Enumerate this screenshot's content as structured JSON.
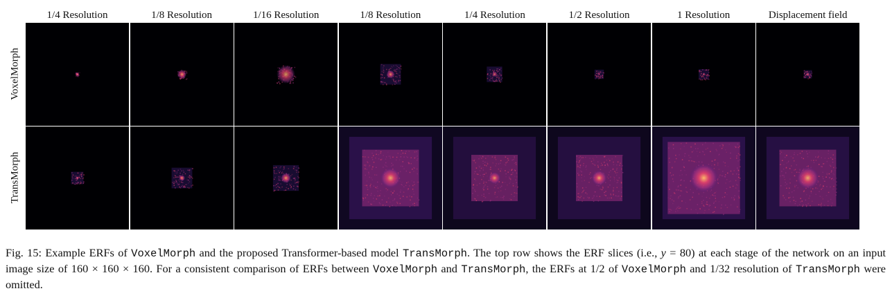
{
  "figure": {
    "columns": [
      "1/4 Resolution",
      "1/8 Resolution",
      "1/16 Resolution",
      "1/8 Resolution",
      "1/4 Resolution",
      "1/2 Resolution",
      "1 Resolution",
      "Displacement field"
    ],
    "rows": [
      "VoxelMorph",
      "TransMorph"
    ],
    "colors": {
      "background": "#000003",
      "hot_core": "#fcb86a",
      "warm": "#e2406c",
      "mid": "#9e2f7f",
      "cool": "#4b1d7a",
      "dim": "#1e0f3d"
    },
    "panels": [
      [
        {
          "core": 0.04,
          "halo": 0.0,
          "field": 0.0,
          "intensity": 1.0
        },
        {
          "core": 0.09,
          "halo": 0.0,
          "field": 0.0,
          "intensity": 0.9
        },
        {
          "core": 0.18,
          "halo": 0.0,
          "field": 0.0,
          "intensity": 0.8
        },
        {
          "core": 0.08,
          "halo": 0.2,
          "field": 0.0,
          "intensity": 0.85
        },
        {
          "core": 0.05,
          "halo": 0.15,
          "field": 0.0,
          "intensity": 0.8
        },
        {
          "core": 0.02,
          "halo": 0.09,
          "field": 0.0,
          "intensity": 0.7
        },
        {
          "core": 0.03,
          "halo": 0.1,
          "field": 0.0,
          "intensity": 0.8
        },
        {
          "core": 0.04,
          "halo": 0.08,
          "field": 0.0,
          "intensity": 0.8
        }
      ],
      [
        {
          "core": 0.03,
          "halo": 0.12,
          "field": 0.0,
          "intensity": 1.0
        },
        {
          "core": 0.06,
          "halo": 0.2,
          "field": 0.0,
          "intensity": 0.9
        },
        {
          "core": 0.1,
          "halo": 0.25,
          "field": 0.0,
          "intensity": 0.9
        },
        {
          "core": 0.2,
          "halo": 0.55,
          "field": 1.0,
          "intensity": 0.9
        },
        {
          "core": 0.12,
          "halo": 0.45,
          "field": 0.8,
          "intensity": 0.85
        },
        {
          "core": 0.15,
          "halo": 0.45,
          "field": 0.85,
          "intensity": 0.9
        },
        {
          "core": 0.28,
          "halo": 0.7,
          "field": 1.0,
          "intensity": 1.0
        },
        {
          "core": 0.22,
          "halo": 0.55,
          "field": 0.9,
          "intensity": 0.9
        }
      ]
    ]
  },
  "caption": {
    "label": "Fig. 15: Example ERFs of ",
    "model_a": "VoxelMorph",
    "t1": " and the proposed Transformer-based model ",
    "model_b": "TransMorph",
    "t2": ". The top row shows the ERF slices (i.e., ",
    "var_y": "y",
    "t3": " = 80) at each stage of the network on an input image size of 160 × 160 × 160. For a consistent comparison of ERFs between ",
    "t4": " and ",
    "t5": ", the ERFs at 1/2 of ",
    "t6": " and 1/32 resolution of ",
    "t7": " were omitted."
  }
}
